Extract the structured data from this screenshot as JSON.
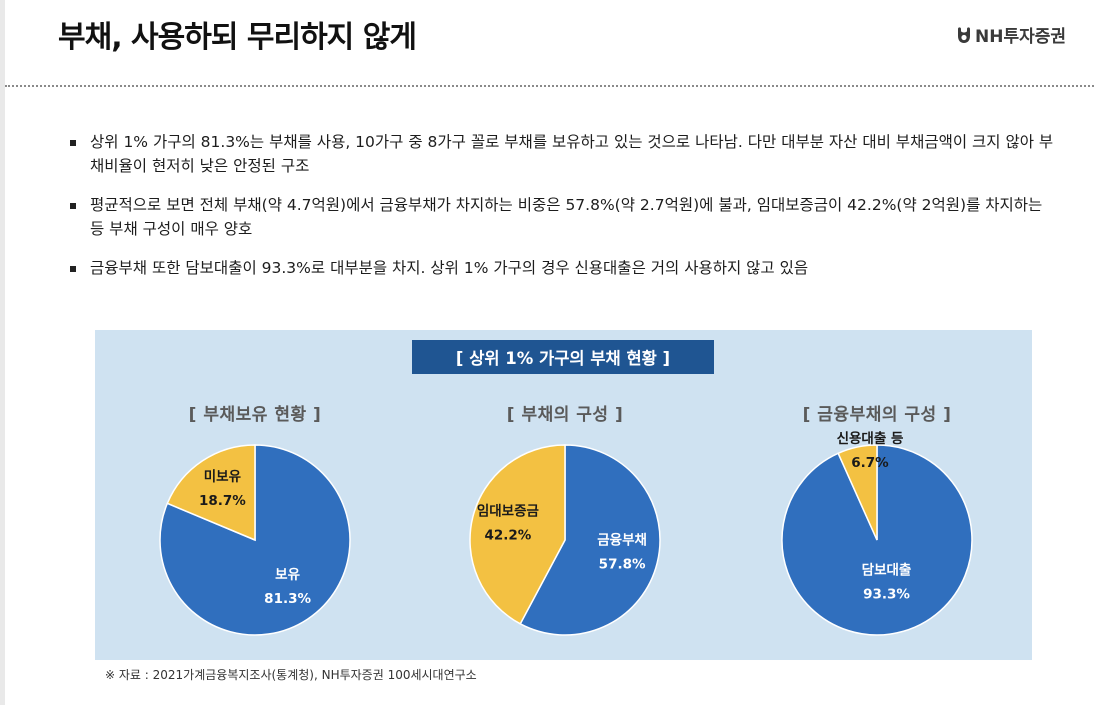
{
  "header": {
    "title": "부채, 사용하되 무리하지 않게",
    "logo_text": "NH투자증권",
    "logo_icon": "nh-logo-icon"
  },
  "bullets": [
    "상위 1% 가구의 81.3%는 부채를 사용, 10가구 중 8가구 꼴로 부채를 보유하고 있는 것으로 나타남. 다만 대부분 자산 대비 부채금액이 크지 않아 부채비율이 현저히 낮은 안정된 구조",
    "평균적으로 보면 전체 부채(약 4.7억원)에서 금융부채가 차지하는 비중은 57.8%(약 2.7억원)에 불과, 임대보증금이 42.2%(약 2억원)를 차지하는 등 부채 구성이 매우 양호",
    "금융부채 또한 담보대출이 93.3%로 대부분을 차지. 상위 1% 가구의 경우 신용대출은 거의 사용하지 않고 있음"
  ],
  "panel": {
    "title": "[ 상위 1% 가구의 부채 현황 ]"
  },
  "colors": {
    "blue": "#306fbe",
    "yellow": "#f3c142",
    "panel_bg": "#cfe2f1",
    "title_box": "#1f5592"
  },
  "chart_data": [
    {
      "type": "pie",
      "title": "[ 부채보유 현황 ]",
      "slices": [
        {
          "label": "보유",
          "value": 81.3,
          "value_text": "81.3%",
          "color": "#306fbe",
          "label_color": "#ffffff"
        },
        {
          "label": "미보유",
          "value": 18.7,
          "value_text": "18.7%",
          "color": "#f3c142",
          "label_color": "#1a1a1a"
        }
      ]
    },
    {
      "type": "pie",
      "title": "[ 부채의 구성 ]",
      "slices": [
        {
          "label": "금융부채",
          "value": 57.8,
          "value_text": "57.8%",
          "color": "#306fbe",
          "label_color": "#ffffff"
        },
        {
          "label": "임대보증금",
          "value": 42.2,
          "value_text": "42.2%",
          "color": "#f3c142",
          "label_color": "#1a1a1a"
        }
      ]
    },
    {
      "type": "pie",
      "title": "[ 금융부채의 구성 ]",
      "slices": [
        {
          "label": "담보대출",
          "value": 93.3,
          "value_text": "93.3%",
          "color": "#306fbe",
          "label_color": "#ffffff"
        },
        {
          "label": "신용대출 등",
          "value": 6.7,
          "value_text": "6.7%",
          "color": "#f3c142",
          "label_color": "#1a1a1a"
        }
      ]
    }
  ],
  "footer": {
    "source": "※ 자료 : 2021가계금융복지조사(통계청), NH투자증권 100세시대연구소"
  }
}
